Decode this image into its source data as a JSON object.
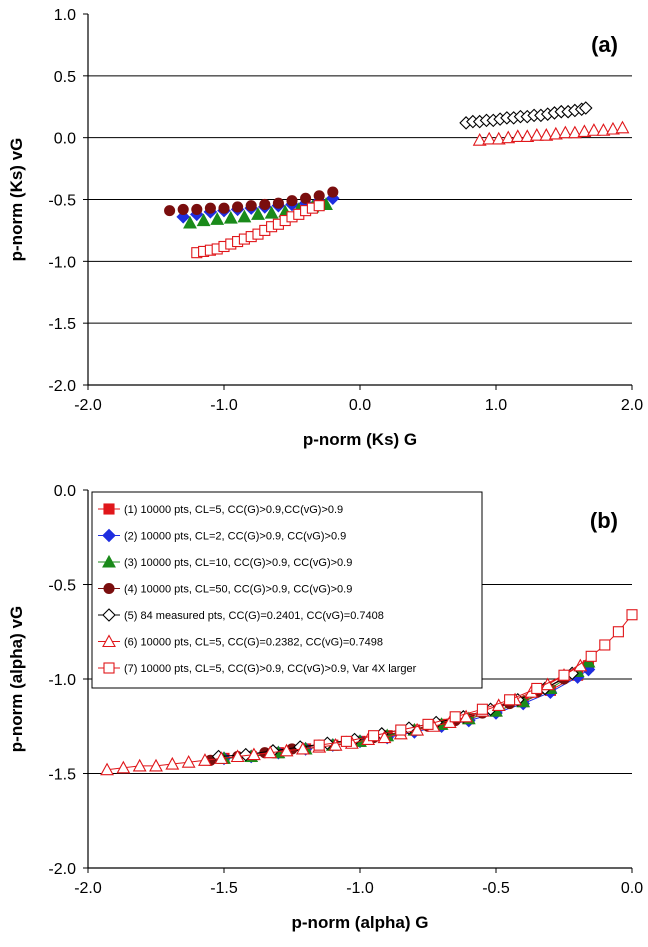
{
  "chart_data": [
    {
      "type": "scatter",
      "panel_label": "(a)",
      "xlabel": "p-norm (Ks) G",
      "ylabel": "p-norm (Ks) vG",
      "xlim": [
        -2.0,
        2.0
      ],
      "ylim": [
        -2.0,
        1.0
      ],
      "xticks": [
        -2.0,
        -1.0,
        0.0,
        1.0,
        2.0
      ],
      "yticks": [
        -2.0,
        -1.5,
        -1.0,
        -0.5,
        0.0,
        0.5,
        1.0
      ],
      "xtick_labels": [
        "-2.0",
        "-1.0",
        "0.0",
        "1.0",
        "2.0"
      ],
      "ytick_labels": [
        "-2.0",
        "-1.5",
        "-1.0",
        "-0.5",
        "0.0",
        "0.5",
        "1.0"
      ],
      "grid": "horizontal",
      "legend": "none",
      "series": [
        {
          "marker": "diamond-filled",
          "color": "#1f2ee0",
          "line": false,
          "x": [
            -1.3,
            -1.2,
            -1.1,
            -1.0,
            -0.9,
            -0.8,
            -0.7,
            -0.6,
            -0.5,
            -0.4,
            -0.3,
            -0.2
          ],
          "y": [
            -0.64,
            -0.62,
            -0.6,
            -0.59,
            -0.58,
            -0.57,
            -0.56,
            -0.55,
            -0.54,
            -0.53,
            -0.51,
            -0.49
          ]
        },
        {
          "marker": "triangle-filled",
          "color": "#1a8a1a",
          "line": false,
          "x": [
            -1.25,
            -1.15,
            -1.05,
            -0.95,
            -0.85,
            -0.75,
            -0.65,
            -0.55,
            -0.45,
            -0.35,
            -0.25
          ],
          "y": [
            -0.69,
            -0.67,
            -0.66,
            -0.65,
            -0.64,
            -0.62,
            -0.61,
            -0.6,
            -0.58,
            -0.56,
            -0.54
          ]
        },
        {
          "marker": "circle-filled",
          "color": "#7a0e0e",
          "line": false,
          "x": [
            -1.4,
            -1.3,
            -1.2,
            -1.1,
            -1.0,
            -0.9,
            -0.8,
            -0.7,
            -0.6,
            -0.5,
            -0.4,
            -0.3,
            -0.2
          ],
          "y": [
            -0.59,
            -0.58,
            -0.58,
            -0.57,
            -0.57,
            -0.56,
            -0.55,
            -0.54,
            -0.53,
            -0.51,
            -0.49,
            -0.47,
            -0.44
          ]
        },
        {
          "marker": "square-open",
          "color": "#e0161a",
          "line": false,
          "x": [
            -1.2,
            -1.15,
            -1.1,
            -1.05,
            -1.0,
            -0.95,
            -0.9,
            -0.85,
            -0.8,
            -0.75,
            -0.7,
            -0.65,
            -0.6,
            -0.55,
            -0.5,
            -0.45,
            -0.4,
            -0.35,
            -0.3
          ],
          "y": [
            -0.93,
            -0.92,
            -0.91,
            -0.9,
            -0.88,
            -0.86,
            -0.84,
            -0.82,
            -0.8,
            -0.78,
            -0.75,
            -0.72,
            -0.7,
            -0.67,
            -0.64,
            -0.62,
            -0.59,
            -0.57,
            -0.55
          ]
        },
        {
          "marker": "diamond-open",
          "color": "#000000",
          "line": false,
          "x": [
            0.78,
            0.83,
            0.88,
            0.93,
            0.98,
            1.03,
            1.08,
            1.13,
            1.18,
            1.23,
            1.28,
            1.33,
            1.38,
            1.43,
            1.48,
            1.53,
            1.58,
            1.63,
            1.66
          ],
          "y": [
            0.12,
            0.13,
            0.13,
            0.14,
            0.14,
            0.15,
            0.16,
            0.16,
            0.17,
            0.17,
            0.18,
            0.18,
            0.19,
            0.2,
            0.21,
            0.21,
            0.22,
            0.23,
            0.24
          ]
        },
        {
          "marker": "triangle-open",
          "color": "#e0161a",
          "line": false,
          "x": [
            0.88,
            0.95,
            1.02,
            1.09,
            1.16,
            1.23,
            1.3,
            1.37,
            1.44,
            1.51,
            1.58,
            1.65,
            1.72,
            1.79,
            1.86,
            1.93
          ],
          "y": [
            -0.02,
            -0.01,
            -0.01,
            0.0,
            0.01,
            0.01,
            0.02,
            0.02,
            0.03,
            0.04,
            0.04,
            0.05,
            0.06,
            0.06,
            0.07,
            0.08
          ]
        }
      ]
    },
    {
      "type": "line",
      "panel_label": "(b)",
      "xlabel": "p-norm (alpha) G",
      "ylabel": "p-norm (alpha) vG",
      "xlim": [
        -2.0,
        0.0
      ],
      "ylim": [
        -2.0,
        0.0
      ],
      "xticks": [
        -2.0,
        -1.5,
        -1.0,
        -0.5,
        0.0
      ],
      "yticks": [
        -2.0,
        -1.5,
        -1.0,
        -0.5,
        0.0
      ],
      "xtick_labels": [
        "-2.0",
        "-1.5",
        "-1.0",
        "-0.5",
        "0.0"
      ],
      "ytick_labels": [
        "-2.0",
        "-1.5",
        "-1.0",
        "-0.5",
        "0.0"
      ],
      "grid": "horizontal",
      "legend": "top-left",
      "series": [
        {
          "name": "(1) 10000 pts, CL=5, CC(G)>0.9,CC(vG)>0.9",
          "marker": "square-filled",
          "color": "#e0161a",
          "line": true,
          "x": [
            -1.5,
            -1.4,
            -1.3,
            -1.2,
            -1.1,
            -1.0,
            -0.9,
            -0.8,
            -0.7,
            -0.6,
            -0.5,
            -0.4,
            -0.3,
            -0.2,
            -0.16
          ],
          "y": [
            -1.42,
            -1.41,
            -1.39,
            -1.37,
            -1.35,
            -1.33,
            -1.3,
            -1.27,
            -1.24,
            -1.21,
            -1.17,
            -1.12,
            -1.06,
            -0.98,
            -0.93
          ]
        },
        {
          "name": "(2) 10000 pts, CL=2, CC(G)>0.9, CC(vG)>0.9",
          "marker": "diamond-filled",
          "color": "#1f2ee0",
          "line": true,
          "x": [
            -1.5,
            -1.4,
            -1.3,
            -1.2,
            -1.1,
            -1.0,
            -0.9,
            -0.8,
            -0.7,
            -0.6,
            -0.5,
            -0.4,
            -0.3,
            -0.2,
            -0.16
          ],
          "y": [
            -1.42,
            -1.41,
            -1.39,
            -1.37,
            -1.35,
            -1.33,
            -1.31,
            -1.28,
            -1.25,
            -1.22,
            -1.18,
            -1.13,
            -1.07,
            -0.99,
            -0.95
          ]
        },
        {
          "name": "(3) 10000 pts, CL=10, CC(G)>0.9, CC(vG)>0.9",
          "marker": "triangle-filled",
          "color": "#1a8a1a",
          "line": true,
          "x": [
            -1.5,
            -1.4,
            -1.3,
            -1.2,
            -1.1,
            -1.0,
            -0.9,
            -0.8,
            -0.7,
            -0.6,
            -0.5,
            -0.4,
            -0.3,
            -0.2,
            -0.16
          ],
          "y": [
            -1.42,
            -1.41,
            -1.39,
            -1.37,
            -1.35,
            -1.33,
            -1.3,
            -1.27,
            -1.24,
            -1.21,
            -1.17,
            -1.12,
            -1.05,
            -0.96,
            -0.91
          ]
        },
        {
          "name": "(4) 10000 pts, CL=50, CC(G)>0.9, CC(vG)>0.9",
          "marker": "circle-filled",
          "color": "#7a0e0e",
          "line": true,
          "x": [
            -1.55,
            -1.45,
            -1.35,
            -1.25,
            -1.15,
            -1.05,
            -0.95,
            -0.85,
            -0.75,
            -0.65,
            -0.55,
            -0.45,
            -0.35,
            -0.25
          ],
          "y": [
            -1.43,
            -1.41,
            -1.39,
            -1.37,
            -1.35,
            -1.33,
            -1.31,
            -1.28,
            -1.25,
            -1.22,
            -1.18,
            -1.13,
            -1.07,
            -1.0
          ]
        },
        {
          "name": "(5) 84 measured pts, CC(G)=0.2401, CC(vG)=0.7408",
          "marker": "diamond-open",
          "color": "#000000",
          "line": true,
          "x": [
            -1.52,
            -1.42,
            -1.32,
            -1.22,
            -1.12,
            -1.02,
            -0.92,
            -0.82,
            -0.72,
            -0.62,
            -0.52,
            -0.42,
            -0.32,
            -0.22
          ],
          "y": [
            -1.41,
            -1.4,
            -1.38,
            -1.36,
            -1.34,
            -1.32,
            -1.29,
            -1.26,
            -1.23,
            -1.2,
            -1.16,
            -1.11,
            -1.05,
            -0.97
          ]
        },
        {
          "name": "(6) 10000 pts, CL=5, CC(G)=0.2382, CC(vG)=0.7498",
          "marker": "triangle-open",
          "color": "#e0161a",
          "line": true,
          "x": [
            -1.93,
            -1.87,
            -1.81,
            -1.75,
            -1.69,
            -1.63,
            -1.57,
            -1.51,
            -1.45,
            -1.39,
            -1.33,
            -1.27,
            -1.21,
            -1.15,
            -1.09,
            -1.03,
            -0.97,
            -0.91,
            -0.85,
            -0.79,
            -0.73,
            -0.67,
            -0.61,
            -0.55,
            -0.49,
            -0.43,
            -0.37,
            -0.31,
            -0.25,
            -0.19
          ],
          "y": [
            -1.48,
            -1.47,
            -1.46,
            -1.46,
            -1.45,
            -1.44,
            -1.43,
            -1.42,
            -1.41,
            -1.4,
            -1.39,
            -1.38,
            -1.37,
            -1.36,
            -1.35,
            -1.34,
            -1.32,
            -1.31,
            -1.29,
            -1.27,
            -1.25,
            -1.23,
            -1.2,
            -1.17,
            -1.14,
            -1.11,
            -1.07,
            -1.03,
            -0.98,
            -0.93
          ]
        },
        {
          "name": "(7) 10000 pts, CL=5, CC(G)>0.9, CC(vG)>0.9, Var 4X larger",
          "marker": "square-open",
          "color": "#e0161a",
          "line": true,
          "x": [
            -1.15,
            -1.05,
            -0.95,
            -0.85,
            -0.75,
            -0.65,
            -0.55,
            -0.45,
            -0.35,
            -0.25,
            -0.15,
            -0.1,
            -0.05,
            0.0
          ],
          "y": [
            -1.35,
            -1.33,
            -1.3,
            -1.27,
            -1.24,
            -1.2,
            -1.16,
            -1.11,
            -1.05,
            -0.98,
            -0.88,
            -0.82,
            -0.75,
            -0.66
          ]
        }
      ]
    }
  ]
}
